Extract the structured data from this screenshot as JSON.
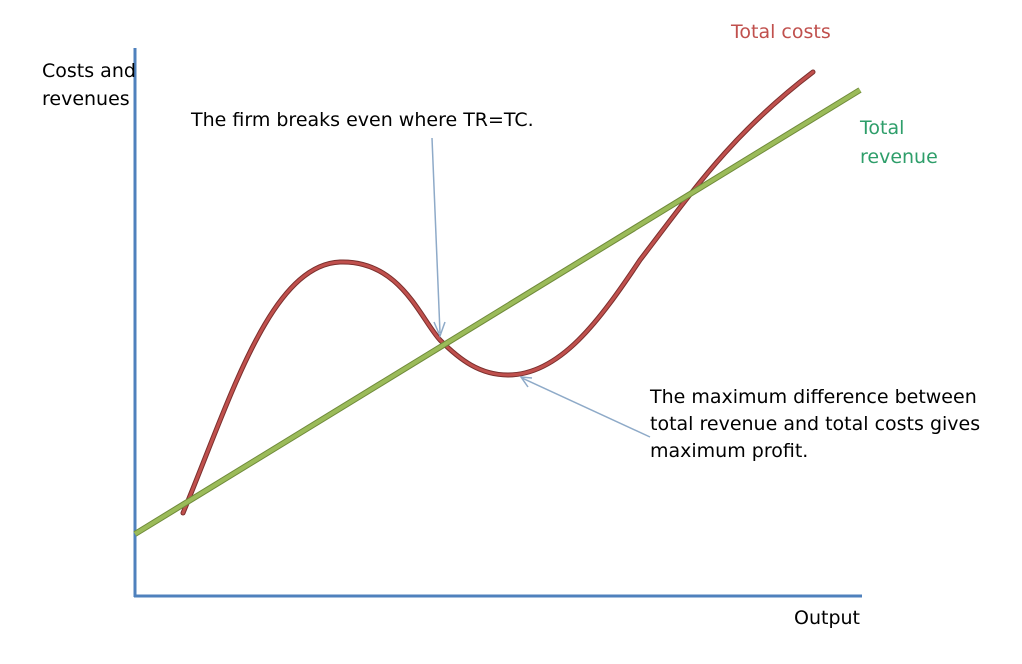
{
  "axes": {
    "y_label": "Costs and revenues",
    "x_label": "Output"
  },
  "curves": {
    "total_costs": {
      "label": "Total costs",
      "color": "#c0504d"
    },
    "total_revenue": {
      "label": "Total\nrevenue",
      "color": "#9bbb59"
    }
  },
  "annotations": {
    "breakeven": "The firm breaks even where  TR=TC.",
    "max_profit": "The maximum difference between\ntotal revenue and total costs gives\nmaximum  profit."
  },
  "colors": {
    "axis": "#4f81bd",
    "arrow": "#8eaac8",
    "total_costs_text": "#c0504d",
    "total_revenue_text": "#2e9e6a"
  }
}
